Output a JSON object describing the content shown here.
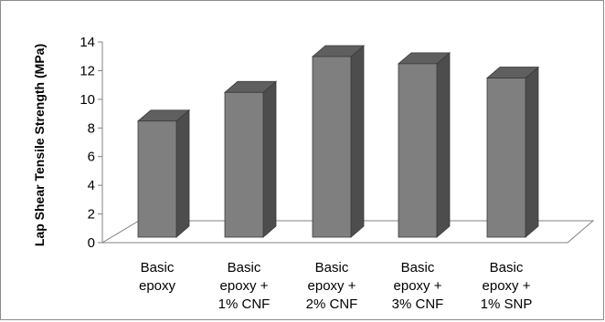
{
  "chart_data": {
    "type": "bar",
    "title": "",
    "xlabel": "",
    "ylabel": "Lap Shear Tensile Strength (MPa)",
    "categories": [
      [
        "Basic",
        "epoxy"
      ],
      [
        "Basic",
        "epoxy +",
        "1% CNF"
      ],
      [
        "Basic",
        "epoxy +",
        "2% CNF"
      ],
      [
        "Basic",
        "epoxy +",
        "3% CNF"
      ],
      [
        "Basic",
        "epoxy +",
        "1% SNP"
      ]
    ],
    "values": [
      8.1,
      10.1,
      12.6,
      12.1,
      11.1
    ],
    "yticks": [
      "0",
      "2",
      "4",
      "6",
      "8",
      "10",
      "12",
      "14"
    ],
    "ylim": [
      0,
      14
    ],
    "grid": false,
    "colors": {
      "bar_front": "#7f7f7f",
      "bar_side": "#4d4d4d",
      "bar_top": "#5f5f5f",
      "outline": "#3a3a3a",
      "floor": "#808080"
    }
  }
}
